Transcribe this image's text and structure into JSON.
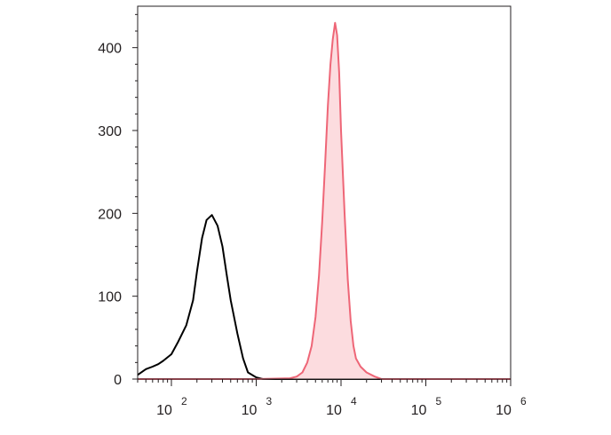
{
  "chart_data": {
    "type": "area",
    "title": "",
    "xlabel": "",
    "ylabel": "",
    "x_scale": "log",
    "xlim": [
      40,
      1000000
    ],
    "ylim": [
      0,
      450
    ],
    "y_ticks": [
      {
        "value": 0,
        "label": "0"
      },
      {
        "value": 100,
        "label": "100"
      },
      {
        "value": 200,
        "label": "200"
      },
      {
        "value": 300,
        "label": "300"
      },
      {
        "value": 400,
        "label": "400"
      }
    ],
    "x_ticks": [
      {
        "value": 100,
        "base": "10",
        "exp": "2"
      },
      {
        "value": 1000,
        "base": "10",
        "exp": "3"
      },
      {
        "value": 10000,
        "base": "10",
        "exp": "4"
      },
      {
        "value": 100000,
        "base": "10",
        "exp": "5"
      },
      {
        "value": 1000000,
        "base": "10",
        "exp": "6"
      }
    ],
    "grid": false,
    "legend": "none",
    "series": [
      {
        "color": "#000000",
        "fill": "none",
        "x": [
          40,
          50,
          60,
          70,
          80,
          100,
          120,
          150,
          180,
          200,
          230,
          260,
          300,
          350,
          400,
          450,
          500,
          600,
          700,
          800,
          1000,
          1200,
          1500,
          2000,
          3000,
          5000,
          10000,
          100000,
          1000000
        ],
        "y": [
          5,
          12,
          15,
          18,
          22,
          30,
          45,
          65,
          95,
          130,
          170,
          192,
          198,
          185,
          160,
          125,
          95,
          55,
          25,
          8,
          2,
          0,
          0,
          0,
          0,
          0,
          0,
          0,
          0
        ]
      },
      {
        "color": "#ee6677",
        "fill": "#fcdcdf",
        "x": [
          40,
          1000,
          2500,
          3000,
          3500,
          4000,
          4500,
          5000,
          5500,
          6000,
          6500,
          7000,
          7500,
          8000,
          8500,
          9000,
          9500,
          10000,
          11000,
          12000,
          13000,
          14000,
          15000,
          17000,
          20000,
          25000,
          30000,
          100000,
          1000000
        ],
        "y": [
          0,
          0,
          1,
          3,
          8,
          20,
          40,
          75,
          125,
          190,
          260,
          330,
          380,
          410,
          430,
          415,
          370,
          300,
          200,
          120,
          70,
          40,
          25,
          15,
          8,
          3,
          0,
          0,
          0
        ]
      }
    ]
  }
}
